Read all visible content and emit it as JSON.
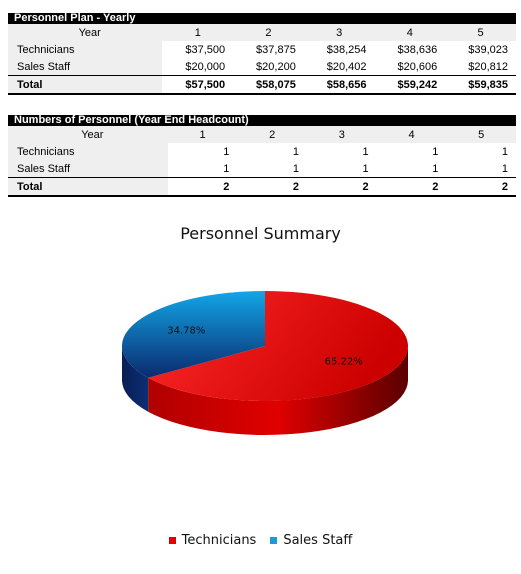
{
  "personnel_plan": {
    "title": "Personnel Plan - Yearly",
    "year_label": "Year",
    "years": [
      "1",
      "2",
      "3",
      "4",
      "5"
    ],
    "rows": [
      {
        "label": "Technicians",
        "values": [
          "$37,500",
          "$37,875",
          "$38,254",
          "$38,636",
          "$39,023"
        ]
      },
      {
        "label": "Sales Staff",
        "values": [
          "$20,000",
          "$20,200",
          "$20,402",
          "$20,606",
          "$20,812"
        ]
      }
    ],
    "total": {
      "label": "Total",
      "values": [
        "$57,500",
        "$58,075",
        "$58,656",
        "$59,242",
        "$59,835"
      ]
    }
  },
  "headcount": {
    "title": "Numbers of Personnel (Year End Headcount)",
    "year_label": "Year",
    "years": [
      "1",
      "2",
      "3",
      "4",
      "5"
    ],
    "rows": [
      {
        "label": "Technicians",
        "values": [
          "1",
          "1",
          "1",
          "1",
          "1"
        ]
      },
      {
        "label": "Sales Staff",
        "values": [
          "1",
          "1",
          "1",
          "1",
          "1"
        ]
      }
    ],
    "total": {
      "label": "Total",
      "values": [
        "2",
        "2",
        "2",
        "2",
        "2"
      ]
    }
  },
  "chart_data": {
    "type": "pie",
    "title": "Personnel Summary",
    "categories": [
      "Technicians",
      "Sales Staff"
    ],
    "values": [
      65.22,
      34.78
    ],
    "data_labels": [
      "65.22%",
      "34.78%"
    ],
    "colors": [
      "#e00000",
      "#1b9ad6"
    ],
    "legend_position": "bottom"
  }
}
